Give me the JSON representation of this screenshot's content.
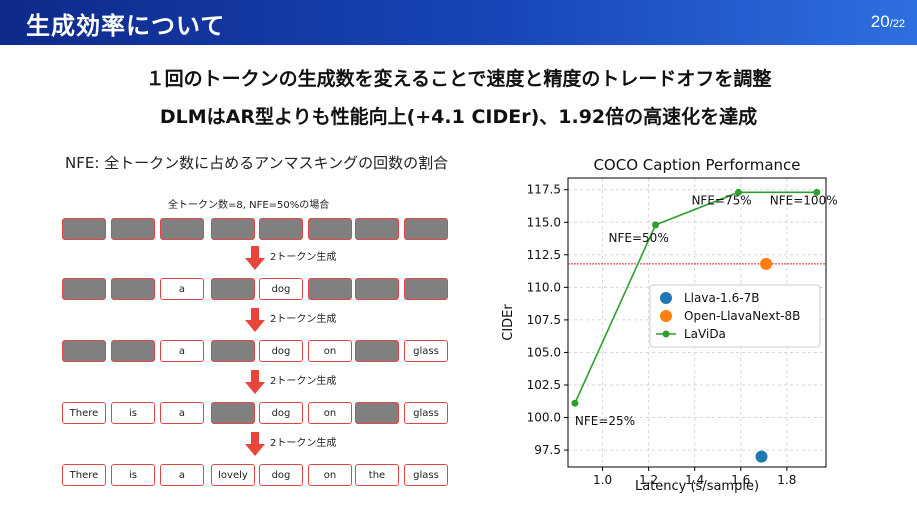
{
  "header": {
    "title": "生成効率について",
    "page_current": "20",
    "page_total": "/22",
    "colors": {
      "bar_start": "#0e2a8a",
      "bar_end": "#2e6fe0"
    }
  },
  "headlines": {
    "line1": "１回のトークンの生成数を変えることで速度と精度のトレードオフを調整",
    "line2": "DLMはAR型よりも性能向上(+4.1 CIDEr)、1.92倍の高速化を達成"
  },
  "nfe_definition": "NFE: 全トークン数に占めるアンマスキングの回数の割合",
  "example": {
    "caption": "全トークン数=8, NFE=50%の場合",
    "step_label": "2トークン生成",
    "rows": [
      [
        "",
        "",
        "",
        "",
        "",
        "",
        "",
        ""
      ],
      [
        "",
        "",
        "a",
        "",
        "dog",
        "",
        "",
        ""
      ],
      [
        "",
        "",
        "a",
        "",
        "dog",
        "on",
        "",
        "glass"
      ],
      [
        "There",
        "is",
        "a",
        "",
        "dog",
        "on",
        "",
        "glass"
      ],
      [
        "There",
        "is",
        "a",
        "lovely",
        "dog",
        "on",
        "the",
        "glass"
      ]
    ],
    "colors": {
      "mask": "#808080",
      "border": "#e04848",
      "arrow": "#e8453c"
    }
  },
  "chart_data": {
    "type": "line",
    "title": "COCO Caption Performance",
    "xlabel": "Latency (s/sample)",
    "ylabel": "CIDEr",
    "xlim": [
      0.85,
      1.97
    ],
    "ylim": [
      96.2,
      118.4
    ],
    "xticks": [
      1.0,
      1.2,
      1.4,
      1.6,
      1.8
    ],
    "yticks": [
      97.5,
      100.0,
      102.5,
      105.0,
      107.5,
      110.0,
      112.5,
      115.0,
      117.5
    ],
    "grid": true,
    "legend_position": "center-right",
    "reference_line": {
      "y": 111.8,
      "color": "#d62728",
      "style": "dashed"
    },
    "series": [
      {
        "name": "Llava-1.6-7B",
        "type": "scatter",
        "color": "#1f77b4",
        "points": [
          {
            "x": 1.69,
            "y": 97.0
          }
        ]
      },
      {
        "name": "Open-LlavaNext-8B",
        "type": "scatter",
        "color": "#ff7f0e",
        "points": [
          {
            "x": 1.71,
            "y": 111.8
          }
        ]
      },
      {
        "name": "LaViDa",
        "type": "line",
        "color": "#2ca02c",
        "points": [
          {
            "x": 0.88,
            "y": 101.1,
            "label": "NFE=25%"
          },
          {
            "x": 1.23,
            "y": 114.8,
            "label": "NFE=50%"
          },
          {
            "x": 1.59,
            "y": 117.3,
            "label": "NFE=75%"
          },
          {
            "x": 1.93,
            "y": 117.3,
            "label": "NFE=100%"
          }
        ]
      }
    ]
  }
}
